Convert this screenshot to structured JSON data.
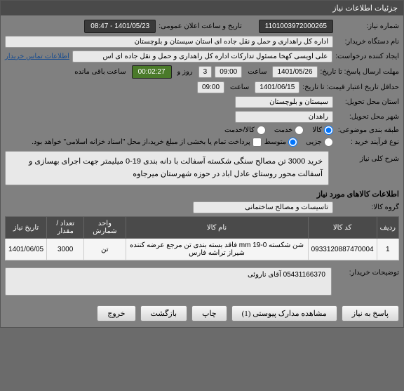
{
  "header": {
    "title": "جزئیات اطلاعات نیاز"
  },
  "fields": {
    "needNumber": {
      "label": "شماره نیاز:",
      "value": "1101003972000265"
    },
    "announceDate": {
      "label": "تاریخ و ساعت اعلان عمومی:",
      "value": "1401/05/23 - 08:47"
    },
    "buyerOrg": {
      "label": "نام دستگاه خریدار:",
      "value": "اداره کل راهداری و حمل و نقل جاده ای استان سیستان و بلوچستان"
    },
    "requester": {
      "label": "ایجاد کننده درخواست:",
      "value": "علی اویسی کهخا مسئول تدارکات اداره کل راهداری و حمل و نقل جاده ای اس",
      "link": "اطلاعات تماس خریدار"
    },
    "deadline": {
      "label": "مهلت ارسال پاسخ: تا تاریخ:",
      "date": "1401/05/26",
      "timeLabel": "ساعت",
      "time": "09:00",
      "daysLabel": "روز و",
      "days": "3",
      "countdown": "00:02:27",
      "remaining": "ساعت باقی مانده"
    },
    "validityEnd": {
      "label": "حداقل تاریخ اعتبار قیمت: تا تاریخ:",
      "date": "1401/06/15",
      "timeLabel": "ساعت",
      "time": "09:00"
    },
    "province": {
      "label": "استان محل تحویل:",
      "value": "سیستان و بلوچستان"
    },
    "city": {
      "label": "شهر محل تحویل:",
      "value": "راهدان"
    },
    "classification": {
      "label": "طبقه بندی موضوعی:",
      "options": [
        "کالا",
        "خدمت",
        "کالا/خدمت"
      ],
      "selected": 0
    },
    "processType": {
      "label": "نوع فرآیند خرید :",
      "options": [
        "جزیی",
        "متوسط"
      ],
      "selected": 1,
      "note": "پرداخت تمام یا بخشی از مبلغ خرید،از محل \"اسناد خزانه اسلامی\" خواهد بود."
    },
    "mainDesc": {
      "label": "شرح کلی نیاز",
      "value": "خرید 3000 تن مصالح سنگی شکسته آسفالت با دانه بندی 19-0 میلیمتر جهت اجرای بهسازی و آسفالت محور روستای عادل اباد در حوزه شهرستان میرجاوه"
    }
  },
  "goodsSection": {
    "title": "اطلاعات کالاهای مورد نیاز",
    "groupLabel": "گروه کالا:",
    "groupValue": "تاسیسات و مصالح ساختمانی",
    "table": {
      "columns": [
        "ردیف",
        "کد کالا",
        "نام کالا",
        "واحد شمارش",
        "تعداد / مقدار",
        "تاریخ نیاز"
      ],
      "rows": [
        [
          "1",
          "0933120887470004",
          "شن شکسته 0-19 mm فاقد بسته بندی تن مرجع عرضه کننده شیراز تراشه فارس",
          "تن",
          "3000",
          "1401/06/05"
        ]
      ]
    }
  },
  "buyerComment": {
    "label": "توضیحات خریدار:",
    "value": "05431166370 آقای ناروئی"
  },
  "buttons": {
    "reply": "پاسخ به نیاز",
    "attachments": "مشاهده مدارک پیوستی (1)",
    "print": "چاپ",
    "back": "بازگشت",
    "exit": "خروج"
  }
}
